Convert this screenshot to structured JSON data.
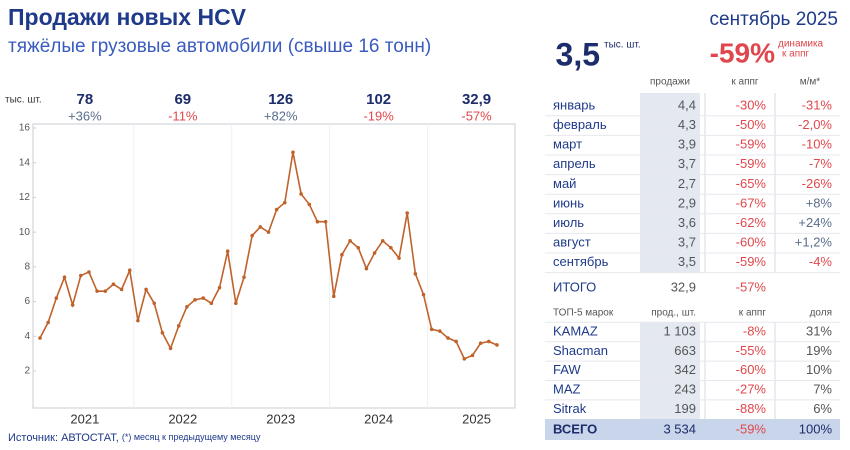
{
  "header": {
    "title": "Продажи новых HCV",
    "subtitle": "тяжёлые грузовые автомобили (свыше 16 тонн)",
    "period": "сентябрь 2025"
  },
  "chart_data": {
    "type": "line",
    "y_unit": "тыс. шт.",
    "year_labels": [
      "2021",
      "2022",
      "2023",
      "2024",
      "2025"
    ],
    "year_totals": [
      {
        "total": "78",
        "change": "+36%"
      },
      {
        "total": "69",
        "change": "-11%"
      },
      {
        "total": "126",
        "change": "+82%"
      },
      {
        "total": "102",
        "change": "-19%"
      },
      {
        "total": "32,9",
        "change": "-57%"
      }
    ],
    "series": [
      {
        "color": "#c0622b",
        "values": [
          3.9,
          4.8,
          6.2,
          7.4,
          5.8,
          7.5,
          7.7,
          6.6,
          6.6,
          7.0,
          6.7,
          7.8,
          4.9,
          6.7,
          5.9,
          4.2,
          3.3,
          4.6,
          5.7,
          6.1,
          6.2,
          5.9,
          6.8,
          8.9,
          5.9,
          7.4,
          9.8,
          10.3,
          10.0,
          11.3,
          11.7,
          14.6,
          12.2,
          11.6,
          10.6,
          10.6,
          6.3,
          8.7,
          9.5,
          9.1,
          7.9,
          8.8,
          9.5,
          9.1,
          8.5,
          11.1,
          7.6,
          6.4,
          4.4,
          4.3,
          3.9,
          3.7,
          2.7,
          2.9,
          3.6,
          3.7,
          3.5
        ]
      }
    ],
    "ylim": [
      0,
      16
    ],
    "yticks": [
      2,
      4,
      6,
      8,
      10,
      12,
      14,
      16
    ],
    "grid": false
  },
  "summary": {
    "value": "3,5",
    "unit": "тыс. шт.",
    "change": "-59%",
    "change_label": [
      "динамика",
      "к аппг"
    ]
  },
  "months": {
    "header": [
      "продажи",
      "к аппг",
      "м/м*"
    ],
    "rows": [
      [
        "январь",
        "4,4",
        "-30%",
        "-31%"
      ],
      [
        "февраль",
        "4,3",
        "-50%",
        "-2,0%"
      ],
      [
        "март",
        "3,9",
        "-59%",
        "-10%"
      ],
      [
        "апрель",
        "3,7",
        "-59%",
        "-7%"
      ],
      [
        "май",
        "2,7",
        "-65%",
        "-26%"
      ],
      [
        "июнь",
        "2,9",
        "-67%",
        "+8%"
      ],
      [
        "июль",
        "3,6",
        "-62%",
        "+24%"
      ],
      [
        "август",
        "3,7",
        "-60%",
        "+1,2%"
      ],
      [
        "сентябрь",
        "3,5",
        "-59%",
        "-4%"
      ]
    ],
    "total": [
      "ИТОГО",
      "32,9",
      "-57%"
    ]
  },
  "brands": {
    "header": [
      "ТОП-5 марок",
      "прод., шт.",
      "к аппг",
      "доля"
    ],
    "rows": [
      [
        "KAMAZ",
        "1 103",
        "-8%",
        "31%"
      ],
      [
        "Shacman",
        "663",
        "-55%",
        "19%"
      ],
      [
        "FAW",
        "342",
        "-60%",
        "10%"
      ],
      [
        "MAZ",
        "243",
        "-27%",
        "7%"
      ],
      [
        "Sitrak",
        "199",
        "-88%",
        "6%"
      ]
    ],
    "total": [
      "ВСЕГО",
      "3 534",
      "-59%",
      "100%"
    ]
  },
  "footer": {
    "source": "Источник: АВТОСТАТ,",
    "note": "(*) месяц к предыдущему месяцу"
  }
}
